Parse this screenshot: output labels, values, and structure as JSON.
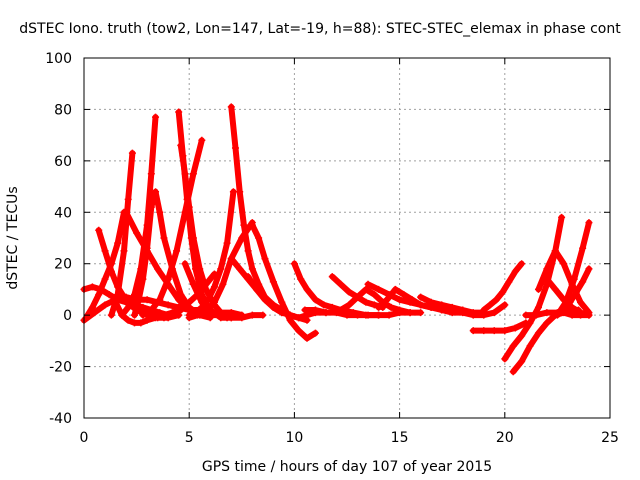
{
  "chart_data": {
    "type": "scatter",
    "title": "dSTEC Iono. truth (tow2, Lon=147, Lat=-19, h=88): STEC-STEC_elemax in phase cont",
    "xlabel": "GPS time / hours of day 107 of year 2015",
    "ylabel": "dSTEC  / TECUs",
    "xlim": [
      0,
      25
    ],
    "ylim": [
      -40,
      100
    ],
    "xticks": [
      "0",
      "5",
      "10",
      "15",
      "20",
      "25"
    ],
    "yticks": [
      "-40",
      "-20",
      "0",
      "20",
      "40",
      "60",
      "80",
      "100"
    ],
    "grid": true,
    "marker": "plus",
    "color": "#ff0000",
    "series": [
      {
        "x": [
          0.0,
          0.4,
          0.8,
          1.2,
          1.6,
          2.0,
          2.4,
          2.8,
          3.2,
          3.6,
          4.0,
          4.5
        ],
        "y": [
          10,
          11,
          10,
          8,
          6,
          5,
          4,
          3,
          2,
          1,
          0,
          0
        ]
      },
      {
        "x": [
          0.0,
          0.5,
          1.0,
          1.5,
          2.0,
          2.5,
          3.0,
          3.5,
          4.0,
          4.5,
          5.0,
          5.5,
          6.0,
          6.5,
          7.0,
          7.5
        ],
        "y": [
          -2,
          1,
          4,
          6,
          7,
          6,
          6,
          5,
          4,
          3,
          2,
          2,
          1,
          1,
          1,
          0
        ]
      },
      {
        "x": [
          0.1,
          0.4,
          0.7,
          1.0,
          1.3,
          1.6,
          1.9
        ],
        "y": [
          -1,
          3,
          8,
          14,
          20,
          28,
          40
        ]
      },
      {
        "x": [
          0.7,
          1.0,
          1.3,
          1.6,
          1.9,
          2.2,
          2.5,
          3.0,
          3.5,
          4.0,
          4.5
        ],
        "y": [
          33,
          25,
          17,
          11,
          7,
          4,
          2,
          0,
          -1,
          -1,
          0
        ]
      },
      {
        "x": [
          1.3,
          1.6,
          1.9,
          2.1,
          2.3
        ],
        "y": [
          0,
          8,
          25,
          45,
          63
        ]
      },
      {
        "x": [
          1.5,
          1.8,
          2.1,
          2.4,
          2.7,
          3.0,
          3.4,
          3.8,
          4.2,
          4.6
        ],
        "y": [
          5,
          0,
          -2,
          -3,
          -3,
          -2,
          -1,
          0,
          1,
          2
        ]
      },
      {
        "x": [
          1.8,
          2.1,
          2.4,
          2.7,
          3.0,
          3.2,
          3.4
        ],
        "y": [
          0,
          3,
          8,
          18,
          35,
          55,
          77
        ]
      },
      {
        "x": [
          2.0,
          2.5,
          3.0,
          3.5,
          4.0,
          4.5,
          5.0
        ],
        "y": [
          40,
          32,
          25,
          18,
          12,
          6,
          2
        ]
      },
      {
        "x": [
          2.4,
          2.6,
          2.8,
          3.0,
          3.2,
          3.4,
          3.6,
          3.8,
          4.2,
          4.6,
          5.0,
          5.5,
          6.0
        ],
        "y": [
          0,
          6,
          14,
          26,
          42,
          48,
          40,
          30,
          18,
          8,
          3,
          0,
          -1
        ]
      },
      {
        "x": [
          2.8,
          3.2,
          3.6,
          4.0,
          4.4,
          4.8,
          5.2,
          5.6
        ],
        "y": [
          0,
          2,
          6,
          14,
          25,
          40,
          55,
          68
        ]
      },
      {
        "x": [
          3.0,
          3.4,
          3.8,
          4.2,
          4.6,
          5.0,
          5.4,
          5.8,
          6.2
        ],
        "y": [
          2,
          0,
          -1,
          0,
          2,
          5,
          8,
          12,
          16
        ]
      },
      {
        "x": [
          4.5,
          4.7,
          4.9,
          5.1,
          5.3,
          5.6,
          6.0,
          6.5,
          7.0
        ],
        "y": [
          79,
          62,
          45,
          30,
          18,
          8,
          2,
          -1,
          -1
        ]
      },
      {
        "x": [
          4.6,
          4.8,
          5.0,
          5.2,
          5.5,
          5.8,
          6.2,
          6.6
        ],
        "y": [
          66,
          55,
          42,
          30,
          18,
          10,
          4,
          0
        ]
      },
      {
        "x": [
          5.0,
          5.3,
          5.6,
          5.9,
          6.2,
          6.5,
          6.8,
          7.1
        ],
        "y": [
          0,
          1,
          3,
          6,
          11,
          18,
          28,
          48
        ]
      },
      {
        "x": [
          5.0,
          5.4,
          5.8,
          6.2,
          6.6,
          7.0,
          7.5,
          8.0
        ],
        "y": [
          -1,
          0,
          1,
          5,
          12,
          22,
          30,
          36
        ]
      },
      {
        "x": [
          4.8,
          5.2,
          5.6,
          6.0,
          6.4,
          6.8
        ],
        "y": [
          20,
          12,
          5,
          1,
          0,
          -1
        ]
      },
      {
        "x": [
          7.0,
          7.2,
          7.4,
          7.6,
          7.8,
          8.0,
          8.3,
          8.6,
          9.0,
          9.4
        ],
        "y": [
          81,
          65,
          48,
          35,
          25,
          18,
          12,
          7,
          3,
          1
        ]
      },
      {
        "x": [
          6.0,
          6.5,
          7.0,
          7.5,
          8.0,
          8.5
        ],
        "y": [
          0,
          0,
          -1,
          -1,
          0,
          0
        ]
      },
      {
        "x": [
          7.0,
          7.4,
          7.8,
          8.2,
          8.6,
          9.0,
          9.4,
          9.8,
          10.2,
          10.6,
          11.0,
          11.5
        ],
        "y": [
          22,
          18,
          14,
          10,
          7,
          4,
          2,
          0,
          -1,
          0,
          1,
          1
        ]
      },
      {
        "x": [
          8.0,
          8.3,
          8.6,
          9.0,
          9.4,
          9.8,
          10.2,
          10.6,
          11.0
        ],
        "y": [
          35,
          30,
          22,
          13,
          5,
          -2,
          -6,
          -9,
          -7
        ]
      },
      {
        "x": [
          7.8,
          8.2,
          8.6,
          9.0,
          9.4,
          9.8,
          10.2,
          10.6
        ],
        "y": [
          15,
          10,
          6,
          3,
          1,
          0,
          -1,
          -2
        ]
      },
      {
        "x": [
          10.0,
          10.3,
          10.6,
          11.0,
          11.4,
          11.8,
          12.2,
          12.8,
          13.4,
          14.0
        ],
        "y": [
          20,
          14,
          10,
          6,
          4,
          3,
          2,
          1,
          0,
          0
        ]
      },
      {
        "x": [
          10.5,
          11.0,
          11.5,
          12.0,
          12.5,
          13.0,
          13.5,
          14.0,
          14.5,
          15.0,
          15.5,
          16.0
        ],
        "y": [
          2,
          2,
          1,
          1,
          0,
          0,
          0,
          0,
          0,
          1,
          1,
          1
        ]
      },
      {
        "x": [
          11.8,
          12.2,
          12.6,
          13.0,
          13.4,
          13.8,
          14.2
        ],
        "y": [
          15,
          12,
          9,
          7,
          5,
          4,
          3
        ]
      },
      {
        "x": [
          12.2,
          12.6,
          13.0,
          13.4,
          13.8,
          14.2,
          14.6,
          15.0,
          15.5
        ],
        "y": [
          2,
          4,
          7,
          10,
          8,
          5,
          3,
          2,
          1
        ]
      },
      {
        "x": [
          13.5,
          14.0,
          14.5,
          15.0,
          15.5,
          16.0,
          16.5,
          17.0,
          17.5
        ],
        "y": [
          12,
          10,
          8,
          6,
          5,
          4,
          3,
          3,
          2
        ]
      },
      {
        "x": [
          14.0,
          14.4,
          14.8,
          15.2,
          15.6,
          16.0,
          16.5,
          17.0
        ],
        "y": [
          3,
          6,
          10,
          8,
          6,
          4,
          3,
          2
        ]
      },
      {
        "x": [
          16.0,
          16.5,
          17.0,
          17.5,
          18.0,
          18.5,
          19.0
        ],
        "y": [
          7,
          5,
          4,
          3,
          2,
          1,
          1
        ]
      },
      {
        "x": [
          17.0,
          17.5,
          18.0,
          18.5,
          19.0,
          19.5,
          20.0
        ],
        "y": [
          2,
          1,
          1,
          0,
          0,
          1,
          4
        ]
      },
      {
        "x": [
          19.0,
          19.3,
          19.6,
          19.9,
          20.2,
          20.5,
          20.8
        ],
        "y": [
          2,
          4,
          6,
          9,
          13,
          17,
          20
        ]
      },
      {
        "x": [
          18.5,
          19.0,
          19.5,
          20.0,
          20.5,
          21.0
        ],
        "y": [
          -6,
          -6,
          -6,
          -6,
          -5,
          -3
        ]
      },
      {
        "x": [
          20.0,
          20.4,
          20.8,
          21.2,
          21.6,
          22.0,
          22.4,
          22.7
        ],
        "y": [
          -17,
          -12,
          -8,
          -3,
          3,
          12,
          25,
          38
        ]
      },
      {
        "x": [
          20.4,
          20.8,
          21.2,
          21.6,
          22.0,
          22.4,
          22.8,
          23.2,
          23.6,
          24.0
        ],
        "y": [
          -22,
          -18,
          -12,
          -7,
          -3,
          0,
          1,
          0,
          0,
          0
        ]
      },
      {
        "x": [
          21.6,
          22.0,
          22.4,
          22.8,
          23.2,
          23.6,
          24.0
        ],
        "y": [
          10,
          18,
          25,
          20,
          12,
          5,
          1
        ]
      },
      {
        "x": [
          22.0,
          22.4,
          22.8,
          23.2,
          23.6,
          24.0
        ],
        "y": [
          14,
          10,
          6,
          3,
          1,
          0
        ]
      },
      {
        "x": [
          22.5,
          22.9,
          23.3,
          23.7,
          24.0
        ],
        "y": [
          0,
          5,
          14,
          26,
          36
        ]
      },
      {
        "x": [
          22.8,
          23.1,
          23.4,
          23.7,
          24.0
        ],
        "y": [
          2,
          5,
          9,
          13,
          18
        ]
      },
      {
        "x": [
          21.0,
          21.5,
          22.0,
          22.5,
          23.0,
          23.5
        ],
        "y": [
          0,
          0,
          1,
          1,
          2,
          2
        ]
      }
    ]
  }
}
